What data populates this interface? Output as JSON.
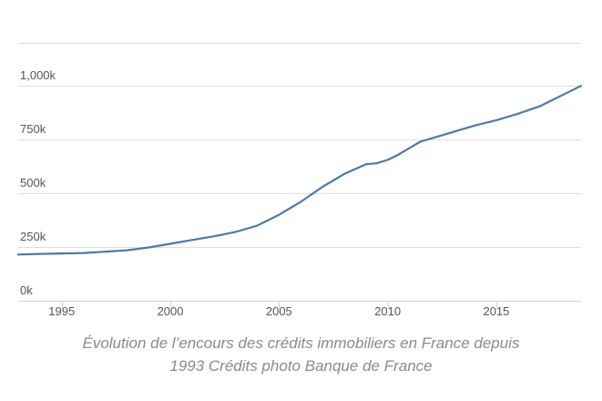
{
  "caption": {
    "line1": "Évolution de l’encours des crédits immobiliers en France depuis",
    "line2": "1993 Crédits photo Banque de France"
  },
  "colors": {
    "line": "#4a7aab",
    "grid": "#dedede",
    "axis": "#c9d3de",
    "tick_text": "#555555"
  },
  "chart_data": {
    "type": "line",
    "title": "",
    "xlabel": "",
    "ylabel": "",
    "xlim": [
      1993.0,
      2018.9
    ],
    "ylim": [
      0,
      1200
    ],
    "x_ticks": [
      1995,
      2000,
      2005,
      2010,
      2015
    ],
    "x_tick_labels": [
      "1995",
      "2000",
      "2005",
      "2010",
      "2015"
    ],
    "y_ticks": [
      0,
      250,
      500,
      750,
      1000
    ],
    "y_tick_labels": [
      "0k",
      "250k",
      "500k",
      "750k",
      "1,000k"
    ],
    "grid": true,
    "legend": "none",
    "series": [
      {
        "x": [
          1993.0,
          1994.0,
          1995.0,
          1996.0,
          1997.0,
          1998.0,
          1999.0,
          2000.0,
          2001.0,
          2002.0,
          2003.0,
          2004.0,
          2005.0,
          2006.0,
          2007.0,
          2008.0,
          2009.0,
          2009.5,
          2010.0,
          2010.5,
          2011.0,
          2011.5,
          2012.0,
          2013.0,
          2014.0,
          2015.0,
          2016.0,
          2017.0,
          2018.0,
          2018.9
        ],
        "y": [
          215,
          218,
          220,
          222,
          228,
          235,
          248,
          265,
          283,
          300,
          320,
          350,
          400,
          460,
          530,
          590,
          635,
          640,
          655,
          680,
          710,
          740,
          755,
          785,
          815,
          840,
          870,
          905,
          955,
          1000
        ]
      }
    ]
  }
}
